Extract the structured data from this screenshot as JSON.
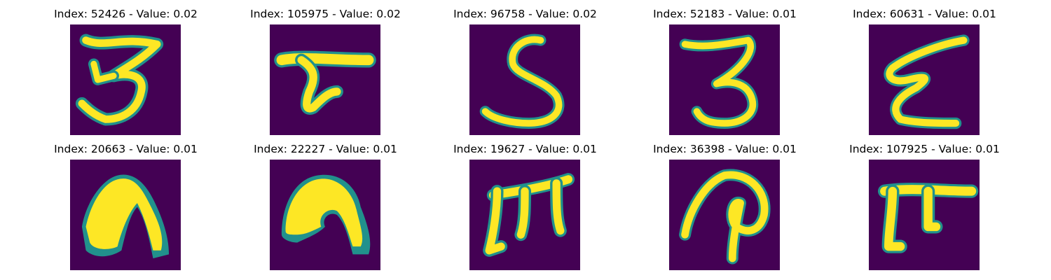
{
  "panels": [
    {
      "index": "52426",
      "value": "0.02",
      "title": "Index: 52426 - Value: 0.02",
      "glyph": "three-loop"
    },
    {
      "index": "105975",
      "value": "0.02",
      "title": "Index: 105975 - Value: 0.02",
      "glyph": "tau"
    },
    {
      "index": "96758",
      "value": "0.02",
      "title": "Index: 96758 - Value: 0.02",
      "glyph": "five"
    },
    {
      "index": "52183",
      "value": "0.01",
      "title": "Index: 52183 - Value: 0.01",
      "glyph": "three"
    },
    {
      "index": "60631",
      "value": "0.01",
      "title": "Index: 60631 - Value: 0.01",
      "glyph": "xi"
    },
    {
      "index": "20663",
      "value": "0.01",
      "title": "Index: 20663 - Value: 0.01",
      "glyph": "arch-thick"
    },
    {
      "index": "22227",
      "value": "0.01",
      "title": "Index: 22227 - Value: 0.01",
      "glyph": "arch-curl"
    },
    {
      "index": "19627",
      "value": "0.01",
      "title": "Index: 19627 - Value: 0.01",
      "glyph": "m-shape"
    },
    {
      "index": "36398",
      "value": "0.01",
      "title": "Index: 36398 - Value: 0.01",
      "glyph": "p-shape"
    },
    {
      "index": "107925",
      "value": "0.01",
      "title": "Index: 107925 - Value: 0.01",
      "glyph": "pi"
    }
  ],
  "colors": {
    "background": "#440154",
    "mid": "#21918c",
    "high": "#fde725"
  }
}
